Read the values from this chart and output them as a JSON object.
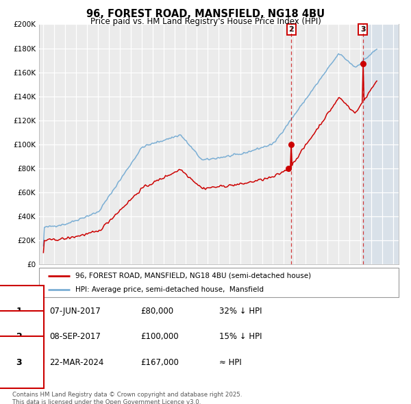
{
  "title": "96, FOREST ROAD, MANSFIELD, NG18 4BU",
  "subtitle": "Price paid vs. HM Land Registry's House Price Index (HPI)",
  "ylim": [
    0,
    200000
  ],
  "yticks": [
    0,
    20000,
    40000,
    60000,
    80000,
    100000,
    120000,
    140000,
    160000,
    180000,
    200000
  ],
  "ytick_labels": [
    "£0",
    "£20K",
    "£40K",
    "£60K",
    "£80K",
    "£100K",
    "£120K",
    "£140K",
    "£160K",
    "£180K",
    "£200K"
  ],
  "xlim_start": 1994.6,
  "xlim_end": 2027.5,
  "hpi_color": "#7aaed4",
  "price_color": "#cc0000",
  "bg_color": "#ebebeb",
  "grid_color": "#ffffff",
  "legend_label_price": "96, FOREST ROAD, MANSFIELD, NG18 4BU (semi-detached house)",
  "legend_label_hpi": "HPI: Average price, semi-detached house,  Mansfield",
  "sale1_date": 2017.44,
  "sale1_price": 80000,
  "sale2_date": 2017.69,
  "sale2_price": 100000,
  "sale3_date": 2024.22,
  "sale3_price": 167000,
  "future_shade_start": 2024.22,
  "future_shade_end": 2027.5,
  "footnote": "Contains HM Land Registry data © Crown copyright and database right 2025.\nThis data is licensed under the Open Government Licence v3.0.",
  "table_rows": [
    {
      "num": "1",
      "date": "07-JUN-2017",
      "price": "£80,000",
      "rel": "32% ↓ HPI"
    },
    {
      "num": "2",
      "date": "08-SEP-2017",
      "price": "£100,000",
      "rel": "15% ↓ HPI"
    },
    {
      "num": "3",
      "date": "22-MAR-2024",
      "price": "£167,000",
      "rel": "≈ HPI"
    }
  ]
}
